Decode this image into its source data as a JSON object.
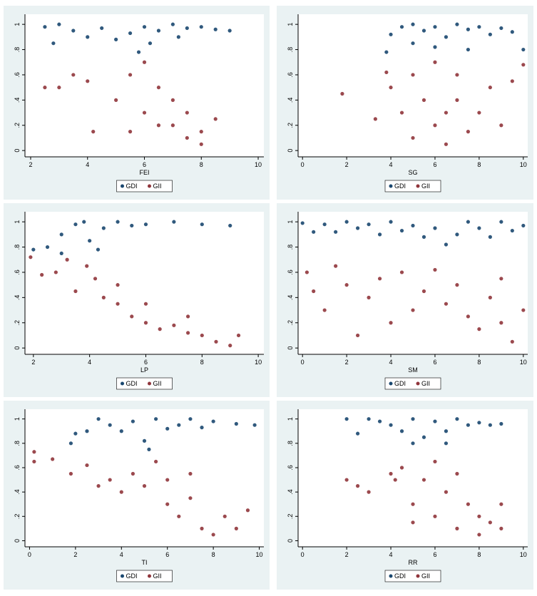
{
  "chart_data": [
    {
      "type": "scatter",
      "x_label": "FEI",
      "xlim": [
        1.8,
        10.2
      ],
      "ylim": [
        -0.05,
        1.08
      ],
      "xticks": [
        2,
        4,
        6,
        8,
        10
      ],
      "yticks": [
        0,
        {
          "value": 0.2,
          "label": ".2"
        },
        {
          "value": 0.4,
          "label": ".4"
        },
        {
          "value": 0.6,
          "label": ".6"
        },
        {
          "value": 0.8,
          "label": ".8"
        },
        1
      ],
      "series": [
        {
          "name": "GDI",
          "color": "#1a476f",
          "x": [
            2.5,
            3,
            3.5,
            2.8,
            4,
            4.5,
            5,
            5.5,
            6,
            6.5,
            7,
            7.5,
            8,
            8.5,
            9,
            5.8,
            6.2,
            7.2
          ],
          "values": [
            0.98,
            1,
            0.95,
            0.85,
            0.9,
            0.97,
            0.88,
            0.93,
            0.98,
            0.95,
            1,
            0.97,
            0.98,
            0.96,
            0.95,
            0.78,
            0.85,
            0.9
          ]
        },
        {
          "name": "GII",
          "color": "#90353b",
          "x": [
            2.5,
            3,
            3.5,
            4,
            4.2,
            5,
            5.5,
            6,
            6,
            6.5,
            7,
            7,
            7.5,
            7.5,
            8,
            8,
            8.5,
            6.5,
            5.5
          ],
          "values": [
            0.5,
            0.5,
            0.6,
            0.55,
            0.15,
            0.4,
            0.6,
            0.7,
            0.3,
            0.5,
            0.4,
            0.2,
            0.3,
            0.1,
            0.15,
            0.05,
            0.25,
            0.2,
            0.15
          ]
        }
      ]
    },
    {
      "type": "scatter",
      "x_label": "SG",
      "xlim": [
        -0.2,
        10.2
      ],
      "ylim": [
        -0.05,
        1.08
      ],
      "xticks": [
        0,
        2,
        4,
        6,
        8,
        10
      ],
      "yticks": [
        0,
        {
          "value": 0.2,
          "label": ".2"
        },
        {
          "value": 0.4,
          "label": ".4"
        },
        {
          "value": 0.6,
          "label": ".6"
        },
        {
          "value": 0.8,
          "label": ".8"
        },
        1
      ],
      "series": [
        {
          "name": "GDI",
          "color": "#1a476f",
          "x": [
            3.8,
            4,
            4.5,
            5,
            5.5,
            6,
            6.5,
            7,
            7.5,
            8,
            8.5,
            9,
            9.5,
            5,
            6,
            7.5,
            10
          ],
          "values": [
            0.78,
            0.92,
            0.98,
            1,
            0.95,
            0.98,
            0.9,
            1,
            0.96,
            0.98,
            0.92,
            0.97,
            0.94,
            0.85,
            0.82,
            0.8,
            0.8
          ]
        },
        {
          "name": "GII",
          "color": "#90353b",
          "x": [
            1.8,
            3.3,
            3.8,
            4,
            4.5,
            5,
            5,
            5.5,
            6,
            6,
            6.5,
            7,
            7,
            7.5,
            8,
            8.5,
            9,
            9.5,
            10,
            6.5
          ],
          "values": [
            0.45,
            0.25,
            0.62,
            0.5,
            0.3,
            0.1,
            0.6,
            0.4,
            0.2,
            0.7,
            0.05,
            0.4,
            0.6,
            0.15,
            0.3,
            0.5,
            0.2,
            0.55,
            0.68,
            0.3
          ]
        }
      ]
    },
    {
      "type": "scatter",
      "x_label": "LP",
      "xlim": [
        1.7,
        10.2
      ],
      "ylim": [
        -0.05,
        1.08
      ],
      "xticks": [
        2,
        4,
        6,
        8,
        10
      ],
      "yticks": [
        0,
        {
          "value": 0.2,
          "label": ".2"
        },
        {
          "value": 0.4,
          "label": ".4"
        },
        {
          "value": 0.6,
          "label": ".6"
        },
        {
          "value": 0.8,
          "label": ".8"
        },
        1
      ],
      "series": [
        {
          "name": "GDI",
          "color": "#1a476f",
          "x": [
            2,
            2.5,
            3,
            3.5,
            3,
            4,
            4.5,
            5,
            5.5,
            6,
            7,
            8,
            9,
            4.3,
            3.8
          ],
          "values": [
            0.78,
            0.8,
            0.9,
            0.98,
            0.75,
            0.85,
            0.95,
            1,
            0.97,
            0.98,
            1,
            0.98,
            0.97,
            0.78,
            1
          ]
        },
        {
          "name": "GII",
          "color": "#90353b",
          "x": [
            1.9,
            2.3,
            2.8,
            3.2,
            3.5,
            3.9,
            4.2,
            4.5,
            5,
            5.5,
            6,
            6.5,
            7,
            7.5,
            8,
            8.5,
            9,
            5,
            6,
            7.5,
            9.3
          ],
          "values": [
            0.72,
            0.58,
            0.6,
            0.7,
            0.45,
            0.65,
            0.55,
            0.4,
            0.35,
            0.25,
            0.2,
            0.15,
            0.18,
            0.12,
            0.1,
            0.05,
            0.02,
            0.5,
            0.35,
            0.25,
            0.1
          ]
        }
      ]
    },
    {
      "type": "scatter",
      "x_label": "SM",
      "xlim": [
        -0.2,
        10.2
      ],
      "ylim": [
        -0.05,
        1.08
      ],
      "xticks": [
        0,
        2,
        4,
        6,
        8,
        10
      ],
      "yticks": [
        0,
        {
          "value": 0.2,
          "label": ".2"
        },
        {
          "value": 0.4,
          "label": ".4"
        },
        {
          "value": 0.6,
          "label": ".6"
        },
        {
          "value": 0.8,
          "label": ".8"
        },
        1
      ],
      "series": [
        {
          "name": "GDI",
          "color": "#1a476f",
          "x": [
            0,
            0.5,
            1,
            1.5,
            2,
            2.5,
            3,
            3.5,
            4,
            4.5,
            5,
            5.5,
            6,
            6.5,
            7,
            7.5,
            8,
            8.5,
            9,
            9.5,
            10
          ],
          "values": [
            0.99,
            0.92,
            0.98,
            0.92,
            1,
            0.95,
            0.98,
            0.9,
            1,
            0.93,
            0.97,
            0.88,
            0.95,
            0.82,
            0.9,
            1,
            0.95,
            0.88,
            1,
            0.93,
            0.97
          ]
        },
        {
          "name": "GII",
          "color": "#90353b",
          "x": [
            0.2,
            0.5,
            1,
            1.5,
            2,
            2.5,
            3,
            3.5,
            4,
            4.5,
            5,
            5.5,
            6,
            6.5,
            7,
            7.5,
            8,
            8.5,
            9,
            9.5,
            10,
            9
          ],
          "values": [
            0.6,
            0.45,
            0.3,
            0.65,
            0.5,
            0.1,
            0.4,
            0.55,
            0.2,
            0.6,
            0.3,
            0.45,
            0.62,
            0.35,
            0.5,
            0.25,
            0.15,
            0.4,
            0.2,
            0.05,
            0.3,
            0.55
          ]
        }
      ]
    },
    {
      "type": "scatter",
      "x_label": "TI",
      "xlim": [
        -0.2,
        10.2
      ],
      "ylim": [
        -0.05,
        1.08
      ],
      "xticks": [
        0,
        2,
        4,
        6,
        8,
        10
      ],
      "yticks": [
        0,
        {
          "value": 0.2,
          "label": ".2"
        },
        {
          "value": 0.4,
          "label": ".4"
        },
        {
          "value": 0.6,
          "label": ".6"
        },
        {
          "value": 0.8,
          "label": ".8"
        },
        1
      ],
      "series": [
        {
          "name": "GDI",
          "color": "#1a476f",
          "x": [
            2,
            2.5,
            3,
            3.5,
            4,
            4.5,
            5,
            5.5,
            6,
            6.5,
            7,
            7.5,
            8,
            9,
            9.8,
            5.2,
            1.8
          ],
          "values": [
            0.88,
            0.9,
            1,
            0.95,
            0.9,
            0.98,
            0.82,
            1,
            0.92,
            0.95,
            1,
            0.93,
            0.98,
            0.96,
            0.95,
            0.75,
            0.8
          ]
        },
        {
          "name": "GII",
          "color": "#90353b",
          "x": [
            0.2,
            0.2,
            1,
            1.8,
            2.5,
            3,
            3.5,
            4,
            4.5,
            5,
            5.5,
            6,
            6,
            6.5,
            7,
            7.5,
            8,
            8.5,
            9,
            9.5,
            7
          ],
          "values": [
            0.73,
            0.65,
            0.67,
            0.55,
            0.62,
            0.45,
            0.5,
            0.4,
            0.55,
            0.45,
            0.65,
            0.5,
            0.3,
            0.2,
            0.35,
            0.1,
            0.05,
            0.2,
            0.1,
            0.25,
            0.55
          ]
        }
      ]
    },
    {
      "type": "scatter",
      "x_label": "RR",
      "xlim": [
        -0.2,
        10.2
      ],
      "ylim": [
        -0.05,
        1.08
      ],
      "xticks": [
        0,
        2,
        4,
        6,
        8,
        10
      ],
      "yticks": [
        0,
        {
          "value": 0.2,
          "label": ".2"
        },
        {
          "value": 0.4,
          "label": ".4"
        },
        {
          "value": 0.6,
          "label": ".6"
        },
        {
          "value": 0.8,
          "label": ".8"
        },
        1
      ],
      "series": [
        {
          "name": "GDI",
          "color": "#1a476f",
          "x": [
            2,
            2.5,
            3,
            3.5,
            4,
            4.5,
            5,
            5.5,
            6,
            6.5,
            7,
            7.5,
            8,
            8.5,
            9,
            6.5,
            5
          ],
          "values": [
            1,
            0.88,
            1,
            0.98,
            0.95,
            0.9,
            1,
            0.85,
            0.98,
            0.9,
            1,
            0.95,
            0.97,
            0.95,
            0.96,
            0.8,
            0.8
          ]
        },
        {
          "name": "GII",
          "color": "#90353b",
          "x": [
            2,
            2.5,
            3,
            4,
            4.5,
            5,
            5.5,
            6,
            6,
            6.5,
            7,
            7,
            7.5,
            8,
            8,
            8.5,
            9,
            5,
            4.2,
            9
          ],
          "values": [
            0.5,
            0.45,
            0.4,
            0.55,
            0.6,
            0.3,
            0.5,
            0.2,
            0.65,
            0.4,
            0.1,
            0.55,
            0.3,
            0.05,
            0.2,
            0.15,
            0.1,
            0.15,
            0.5,
            0.3
          ]
        }
      ]
    }
  ]
}
